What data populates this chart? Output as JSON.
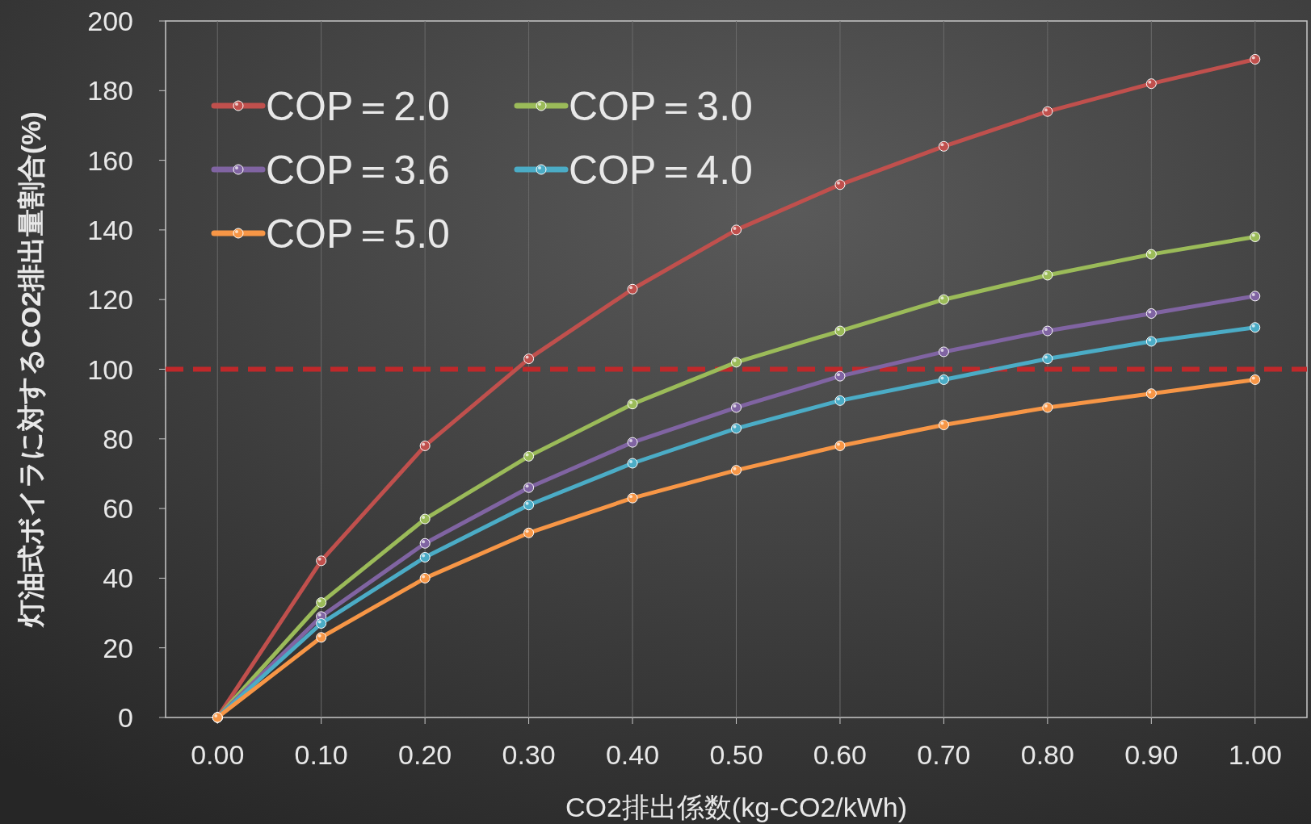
{
  "chart_data": {
    "type": "line",
    "xlabel": "CO2排出係数(kg-CO2/kWh)",
    "ylabel": "灯油式ボイラに対するCO2排出量割合(%)",
    "x": [
      0,
      0.1,
      0.2,
      0.3,
      0.4,
      0.5,
      0.6,
      0.7,
      0.8,
      0.9,
      1.0
    ],
    "xlim": [
      -0.05,
      1.05
    ],
    "ylim": [
      0,
      200
    ],
    "xticks": [
      {
        "value": 0,
        "label": "0.00"
      },
      {
        "value": 0.1,
        "label": "0.10"
      },
      {
        "value": 0.2,
        "label": "0.20"
      },
      {
        "value": 0.3,
        "label": "0.30"
      },
      {
        "value": 0.4,
        "label": "0.40"
      },
      {
        "value": 0.5,
        "label": "0.50"
      },
      {
        "value": 0.6,
        "label": "0.60"
      },
      {
        "value": 0.7,
        "label": "0.70"
      },
      {
        "value": 0.8,
        "label": "0.80"
      },
      {
        "value": 0.9,
        "label": "0.90"
      },
      {
        "value": 1.0,
        "label": "1.00"
      }
    ],
    "yticks": [
      0,
      20,
      40,
      60,
      80,
      100,
      120,
      140,
      160,
      180,
      200
    ],
    "grid": "x",
    "legend": "top left",
    "marker": "circle",
    "line_style": "solid",
    "ref_lines": [
      {
        "axis": "y",
        "value": 100,
        "color": "#c0282a",
        "line_style": "dashed"
      }
    ],
    "series": [
      {
        "name": "COP＝2.0",
        "color": "#c0504d",
        "values": [
          0,
          45,
          78,
          103,
          123,
          140,
          153,
          164,
          174,
          182,
          189
        ]
      },
      {
        "name": "COP＝3.0",
        "color": "#9bbb59",
        "values": [
          0,
          33,
          57,
          75,
          90,
          102,
          111,
          120,
          127,
          133,
          138
        ]
      },
      {
        "name": "COP＝3.6",
        "color": "#8064a2",
        "values": [
          0,
          29,
          50,
          66,
          79,
          89,
          98,
          105,
          111,
          116,
          121
        ]
      },
      {
        "name": "COP＝4.0",
        "color": "#4bacc6",
        "values": [
          0,
          27,
          46,
          61,
          73,
          83,
          91,
          97,
          103,
          108,
          112
        ]
      },
      {
        "name": "COP＝5.0",
        "color": "#f79646",
        "values": [
          0,
          23,
          40,
          53,
          63,
          71,
          78,
          84,
          89,
          93,
          97
        ]
      }
    ]
  }
}
